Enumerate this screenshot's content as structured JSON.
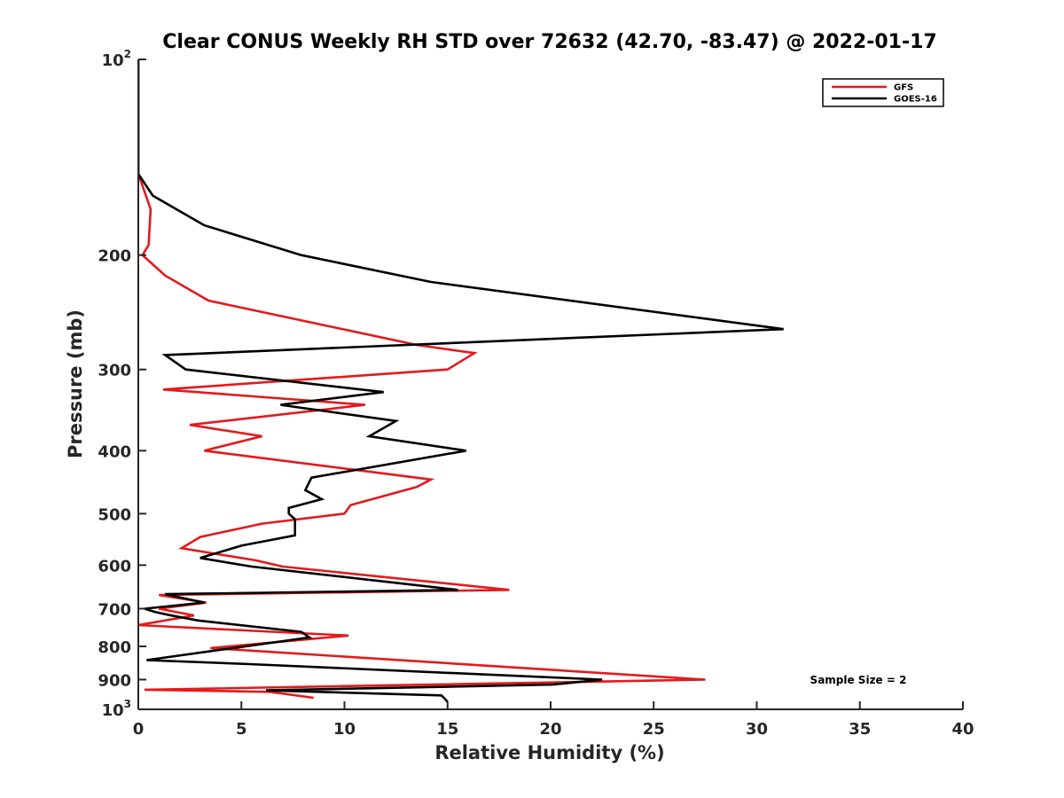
{
  "chart_data": {
    "type": "line",
    "title": "Clear CONUS Weekly RH STD over 72632 (42.70, -83.47) @ 2022-01-17",
    "xlabel": "Relative Humidity (%)",
    "ylabel": "Pressure (mb)",
    "xlim": [
      0,
      40
    ],
    "ylim": [
      100,
      1000
    ],
    "y_scale": "log",
    "y_reversed": true,
    "grid": false,
    "legend_position": "top-right",
    "x_ticks": [
      "0",
      "5",
      "10",
      "15",
      "20",
      "25",
      "30",
      "35",
      "40"
    ],
    "y_ticks": [
      {
        "value": 100,
        "base": "10",
        "exp": "2"
      },
      {
        "value": 200,
        "label": "200"
      },
      {
        "value": 300,
        "label": "300"
      },
      {
        "value": 400,
        "label": "400"
      },
      {
        "value": 500,
        "label": "500"
      },
      {
        "value": 600,
        "label": "600"
      },
      {
        "value": 700,
        "label": "700"
      },
      {
        "value": 800,
        "label": "800"
      },
      {
        "value": 900,
        "label": "900"
      },
      {
        "value": 1000,
        "base": "10",
        "exp": "3"
      }
    ],
    "annotation": "Sample Size = 2",
    "series": [
      {
        "name": "GFS",
        "color": "#e31a1c",
        "points": [
          [
            0,
            100
          ],
          [
            0,
            150
          ],
          [
            0.6,
            170
          ],
          [
            0.5,
            193
          ],
          [
            0.2,
            200
          ],
          [
            1.3,
            215
          ],
          [
            3.4,
            235
          ],
          [
            13.5,
            275
          ],
          [
            16.3,
            283
          ],
          [
            15.0,
            300
          ],
          [
            1.2,
            322
          ],
          [
            11.0,
            340
          ],
          [
            2.5,
            365
          ],
          [
            6.0,
            380
          ],
          [
            3.2,
            400
          ],
          [
            14.2,
            443
          ],
          [
            13.5,
            455
          ],
          [
            10.3,
            485
          ],
          [
            10.0,
            500
          ],
          [
            6.0,
            518
          ],
          [
            3.0,
            543
          ],
          [
            2.1,
            565
          ],
          [
            5.7,
            590
          ],
          [
            7.0,
            603
          ],
          [
            18.0,
            655
          ],
          [
            1.0,
            667
          ],
          [
            3.3,
            685
          ],
          [
            1.0,
            700
          ],
          [
            2.7,
            717
          ],
          [
            0,
            742
          ],
          [
            10.2,
            770
          ],
          [
            3.5,
            805
          ],
          [
            27.5,
            900
          ],
          [
            0.3,
            933
          ],
          [
            6.4,
            940
          ],
          [
            8.5,
            960
          ]
        ]
      },
      {
        "name": "GOES-16",
        "color": "#000000",
        "points": [
          [
            0,
            100
          ],
          [
            0,
            150
          ],
          [
            0.7,
            162
          ],
          [
            3.2,
            180
          ],
          [
            7.9,
            200
          ],
          [
            14.2,
            220
          ],
          [
            31.3,
            260
          ],
          [
            1.3,
            285
          ],
          [
            2.3,
            300
          ],
          [
            11.9,
            325
          ],
          [
            6.9,
            340
          ],
          [
            12.5,
            360
          ],
          [
            11.2,
            380
          ],
          [
            15.9,
            400
          ],
          [
            8.4,
            440
          ],
          [
            8.1,
            460
          ],
          [
            8.9,
            475
          ],
          [
            7.3,
            490
          ],
          [
            7.3,
            500
          ],
          [
            7.6,
            510
          ],
          [
            7.6,
            540
          ],
          [
            5.0,
            560
          ],
          [
            3.0,
            585
          ],
          [
            5.5,
            603
          ],
          [
            15.5,
            655
          ],
          [
            1.3,
            665
          ],
          [
            3.2,
            685
          ],
          [
            0.3,
            700
          ],
          [
            0.8,
            708
          ],
          [
            1.5,
            716
          ],
          [
            2.9,
            730
          ],
          [
            7.9,
            760
          ],
          [
            8.3,
            775
          ],
          [
            0.4,
            840
          ],
          [
            5.4,
            852
          ],
          [
            22.5,
            900
          ],
          [
            20.1,
            916
          ],
          [
            6.2,
            935
          ],
          [
            14.7,
            952
          ],
          [
            14.9,
            965
          ],
          [
            15.0,
            975
          ]
        ]
      }
    ]
  }
}
